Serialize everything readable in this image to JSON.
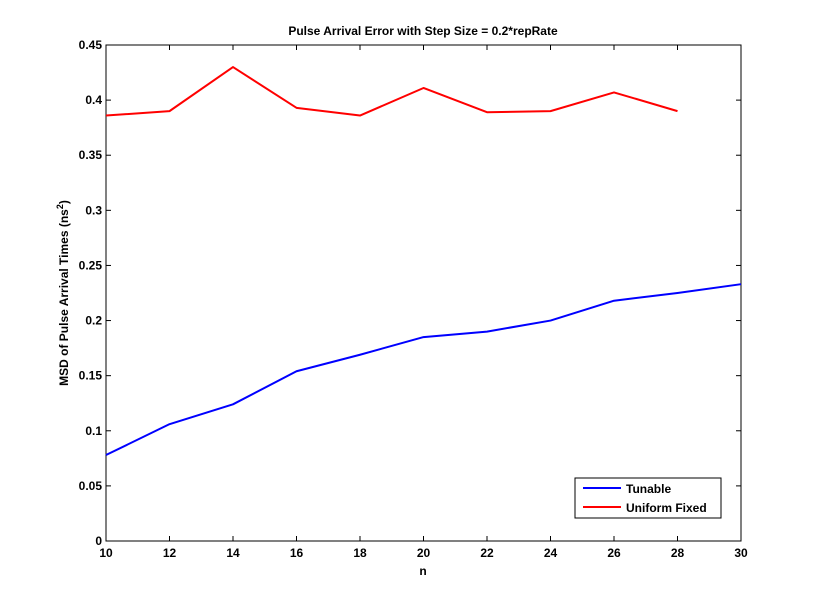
{
  "chart_data": {
    "type": "line",
    "title": "Pulse Arrival Error with Step Size = 0.2*repRate",
    "xlabel": "n",
    "ylabel_main": "MSD of Pulse Arrival Times (ns",
    "ylabel_sup": "2",
    "ylabel_tail": ")",
    "xlim": [
      10,
      30
    ],
    "ylim": [
      0,
      0.45
    ],
    "xticks": [
      10,
      12,
      14,
      16,
      18,
      20,
      22,
      24,
      26,
      28,
      30
    ],
    "yticks": [
      0,
      0.05,
      0.1,
      0.15,
      0.2,
      0.25,
      0.3,
      0.35,
      0.4,
      0.45
    ],
    "ytick_labels": [
      "0",
      "0.05",
      "0.1",
      "0.15",
      "0.2",
      "0.25",
      "0.3",
      "0.35",
      "0.4",
      "0.45"
    ],
    "grid": false,
    "legend_position": "bottom-right",
    "series": [
      {
        "name": "Tunable",
        "color": "#0000ff",
        "x": [
          10,
          12,
          14,
          16,
          18,
          20,
          22,
          24,
          26,
          28,
          30
        ],
        "y": [
          0.078,
          0.106,
          0.124,
          0.154,
          0.169,
          0.185,
          0.19,
          0.2,
          0.218,
          0.225,
          0.233
        ]
      },
      {
        "name": "Uniform Fixed",
        "color": "#ff0000",
        "x": [
          10,
          12,
          14,
          16,
          18,
          20,
          22,
          24,
          26,
          28
        ],
        "y": [
          0.386,
          0.39,
          0.43,
          0.393,
          0.386,
          0.411,
          0.389,
          0.39,
          0.407,
          0.39
        ]
      }
    ]
  }
}
